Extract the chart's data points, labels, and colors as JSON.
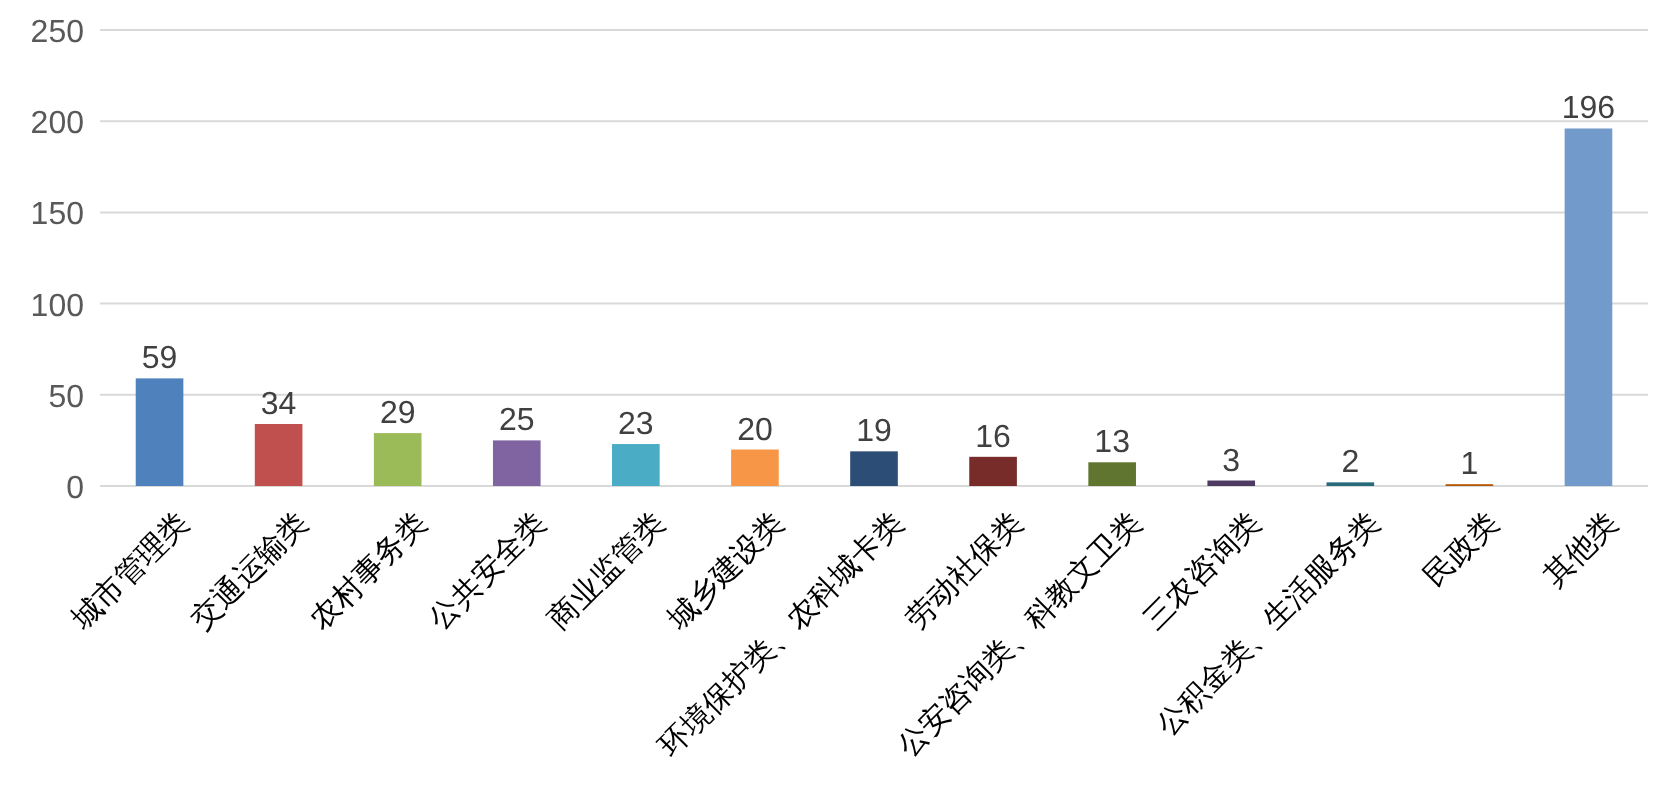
{
  "chart_data": {
    "type": "bar",
    "categories": [
      "城市管理类",
      "交通运输类",
      "农村事务类",
      "公共安全类",
      "商业监管类",
      "城乡建设类",
      "环境保护类、农科城卡类",
      "劳动社保类",
      "公安咨询类、科教文卫类",
      "三农咨询类",
      "公积金类、生活服务类",
      "民政类",
      "其他类"
    ],
    "values": [
      59,
      34,
      29,
      25,
      23,
      20,
      19,
      16,
      13,
      3,
      2,
      1,
      196
    ],
    "colors": [
      "#4f81bd",
      "#c0504d",
      "#9bbb59",
      "#8064a2",
      "#4bacc6",
      "#f79646",
      "#2c4d75",
      "#772c2a",
      "#5f7530",
      "#4d3b62",
      "#276a7c",
      "#b65708",
      "#729aca"
    ],
    "ylim": [
      0,
      250
    ],
    "yticks": [
      0,
      50,
      100,
      150,
      200,
      250
    ],
    "grid": "y",
    "data_labels": true
  }
}
